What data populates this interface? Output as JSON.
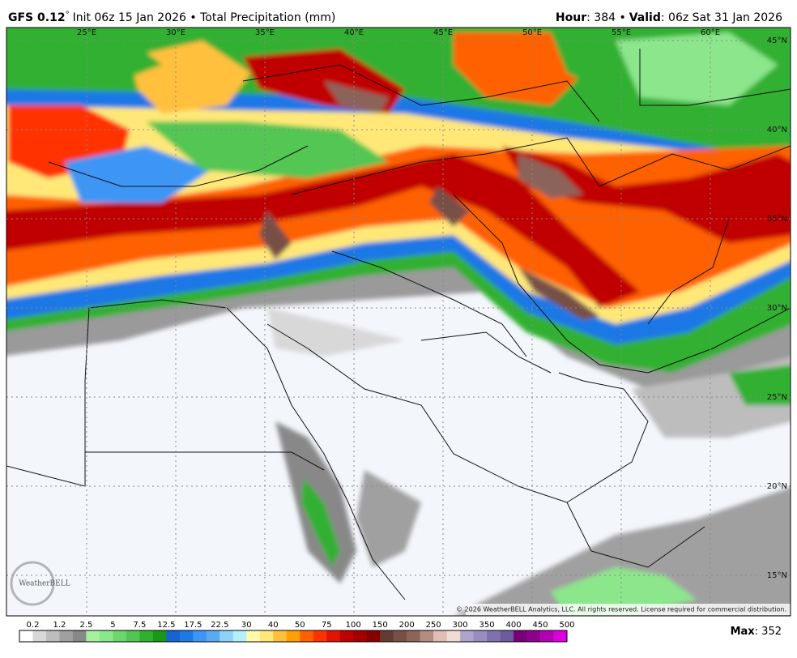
{
  "header": {
    "model": "GFS 0.12",
    "degree": "°",
    "run": "Init 06z 15 Jan 2026 • Total Precipitation (mm)",
    "hour_label": "Hour",
    "hour_value": ": 384 •",
    "valid_label": "Valid",
    "valid_value": ": 06z Sat 31 Jan 2026"
  },
  "map": {
    "lon_labels": [
      "25°E",
      "30°E",
      "35°E",
      "40°E",
      "45°E",
      "50°E",
      "55°E",
      "60°E"
    ],
    "lat_labels": [
      "45°N",
      "40°N",
      "35°N",
      "30°N",
      "25°N",
      "20°N",
      "15°N"
    ],
    "logo": "WeatherBELL",
    "copyright": "© 2026 WeatherBELL Analytics, LLC. All rights reserved. License required for commercial distribution."
  },
  "colorbar": {
    "labels": [
      0.2,
      1.2,
      2.5,
      5,
      7.5,
      12.5,
      17.5,
      22.5,
      30,
      40,
      50,
      75,
      100,
      150,
      200,
      250,
      300,
      350,
      400,
      450,
      500
    ],
    "colors": [
      "#ffffff",
      "#d8d8d8",
      "#bdbdbd",
      "#a0a0a0",
      "#888888",
      "#a6f0a0",
      "#8ce68c",
      "#6ed66e",
      "#52c652",
      "#30b030",
      "#179917",
      "#1464d2",
      "#1e78e6",
      "#3c96f5",
      "#5aaaf0",
      "#8cd2fa",
      "#b4f0fa",
      "#fffaaa",
      "#ffe878",
      "#ffc03c",
      "#ffa000",
      "#ff6000",
      "#ff3200",
      "#e11400",
      "#c00000",
      "#a50000",
      "#870000",
      "#643b32",
      "#785046",
      "#8c645a",
      "#b48c82",
      "#e1beb4",
      "#f0dcd2",
      "#afa5ca",
      "#9b8cbf",
      "#8070b0",
      "#6e5aa0",
      "#780078",
      "#8c008c",
      "#b400b4",
      "#dc00dc"
    ]
  },
  "footer": {
    "max_label": "Max",
    "max_value": ": 352"
  }
}
